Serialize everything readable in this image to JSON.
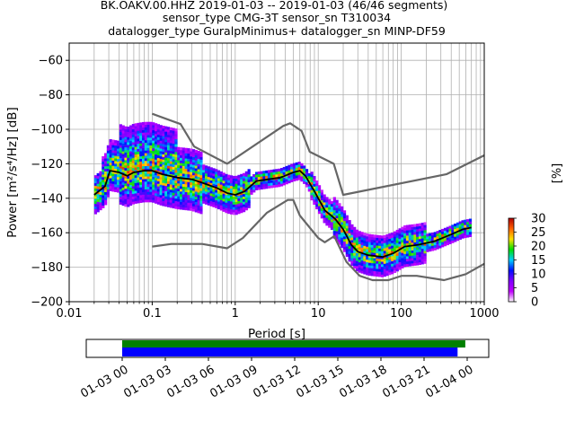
{
  "chart_data": [
    {
      "type": "heatmap",
      "title_lines": [
        "BK.OAKV.00.HHZ   2019-01-03 -- 2019-01-03  (46/46 segments)",
        "sensor_type CMG-3T sensor_sn T310034",
        "datalogger_type GuralpMinimus+ datalogger_sn MINP-DF59"
      ],
      "xlabel": "Period [s]",
      "ylabel": "Power [m²/s⁴/Hz] [dB]",
      "x_scale": "log",
      "xlim": [
        0.01,
        1000
      ],
      "ylim": [
        -200,
        -50
      ],
      "x_ticks": [
        {
          "value": 0.01,
          "label": "0.01"
        },
        {
          "value": 0.1,
          "label": "0.1"
        },
        {
          "value": 1,
          "label": "1"
        },
        {
          "value": 10,
          "label": "10"
        },
        {
          "value": 100,
          "label": "100"
        },
        {
          "value": 1000,
          "label": "1000"
        }
      ],
      "y_ticks": [
        {
          "value": -60,
          "label": "−60"
        },
        {
          "value": -80,
          "label": "−80"
        },
        {
          "value": -100,
          "label": "−100"
        },
        {
          "value": -120,
          "label": "−120"
        },
        {
          "value": -140,
          "label": "−140"
        },
        {
          "value": -160,
          "label": "−160"
        },
        {
          "value": -180,
          "label": "−180"
        },
        {
          "value": -200,
          "label": "−200"
        }
      ],
      "grid": true,
      "colorbar": {
        "label": "[%]",
        "range": [
          0,
          30
        ],
        "ticks": [
          {
            "value": 0,
            "label": "0"
          },
          {
            "value": 5,
            "label": "5"
          },
          {
            "value": 10,
            "label": "10"
          },
          {
            "value": 15,
            "label": "15"
          },
          {
            "value": 20,
            "label": "20"
          },
          {
            "value": 25,
            "label": "25"
          },
          {
            "value": 30,
            "label": "30"
          }
        ],
        "colormap_stops": [
          "#ffffff",
          "#c000ff",
          "#7f00ff",
          "#0010ff",
          "#00d0ff",
          "#00e000",
          "#ffe000",
          "#ff6000",
          "#b00000"
        ]
      },
      "series": [
        {
          "role": "noise-model-high",
          "color": "#666666",
          "points": [
            [
              0.1,
              -91
            ],
            [
              0.22,
              -97
            ],
            [
              0.32,
              -110
            ],
            [
              0.8,
              -120
            ],
            [
              3.8,
              -98
            ],
            [
              4.6,
              -96.5
            ],
            [
              6.3,
              -101
            ],
            [
              7.9,
              -113
            ],
            [
              15.4,
              -120
            ],
            [
              20,
              -138
            ],
            [
              354,
              -126
            ],
            [
              10000,
              -91
            ]
          ]
        },
        {
          "role": "noise-model-low",
          "color": "#666666",
          "points": [
            [
              0.1,
              -168
            ],
            [
              0.17,
              -166.5
            ],
            [
              0.4,
              -166.5
            ],
            [
              0.8,
              -169
            ],
            [
              1.24,
              -163
            ],
            [
              2.4,
              -148.5
            ],
            [
              4.3,
              -141
            ],
            [
              5,
              -141
            ],
            [
              6,
              -150
            ],
            [
              10,
              -163
            ],
            [
              12,
              -165.5
            ],
            [
              15.6,
              -162
            ],
            [
              21.9,
              -177
            ],
            [
              31.6,
              -185
            ],
            [
              45,
              -187.5
            ],
            [
              70,
              -187.5
            ],
            [
              101,
              -185
            ],
            [
              154,
              -185
            ],
            [
              328,
              -187.5
            ],
            [
              600,
              -184
            ],
            [
              1000,
              -178
            ]
          ]
        },
        {
          "role": "mode-curve",
          "color": "#000000",
          "points": [
            [
              0.02,
              -138
            ],
            [
              0.027,
              -133
            ],
            [
              0.031,
              -124
            ],
            [
              0.04,
              -125
            ],
            [
              0.05,
              -127
            ],
            [
              0.06,
              -125
            ],
            [
              0.08,
              -124
            ],
            [
              0.1,
              -124
            ],
            [
              0.13,
              -126
            ],
            [
              0.2,
              -128
            ],
            [
              0.3,
              -129
            ],
            [
              0.4,
              -131
            ],
            [
              0.6,
              -134
            ],
            [
              0.8,
              -137
            ],
            [
              1.0,
              -138
            ],
            [
              1.3,
              -136
            ],
            [
              1.8,
              -130
            ],
            [
              2.5,
              -129
            ],
            [
              3.5,
              -128
            ],
            [
              5,
              -125
            ],
            [
              6,
              -124
            ],
            [
              7,
              -127
            ],
            [
              9,
              -136
            ],
            [
              12,
              -147
            ],
            [
              16,
              -152
            ],
            [
              20,
              -158
            ],
            [
              25,
              -167
            ],
            [
              30,
              -171
            ],
            [
              40,
              -173
            ],
            [
              60,
              -174
            ],
            [
              80,
              -172
            ],
            [
              110,
              -168
            ],
            [
              160,
              -167
            ],
            [
              250,
              -165
            ],
            [
              400,
              -161
            ],
            [
              550,
              -158
            ],
            [
              700,
              -157
            ]
          ]
        }
      ]
    },
    {
      "type": "timeline",
      "x_ticks": [
        "01-03 00",
        "01-03 03",
        "01-03 06",
        "01-03 09",
        "01-03 12",
        "01-03 15",
        "01-03 18",
        "01-03 21",
        "01-04 00"
      ],
      "xlim": [
        "2019-01-02 21:30",
        "2019-01-04 01:30"
      ],
      "bars": [
        {
          "color": "#008000",
          "start": "2019-01-03 00:00",
          "end": "2019-01-03 23:52"
        },
        {
          "color": "#0000ff",
          "start": "2019-01-03 00:00",
          "end": "2019-01-03 23:20"
        }
      ]
    }
  ]
}
